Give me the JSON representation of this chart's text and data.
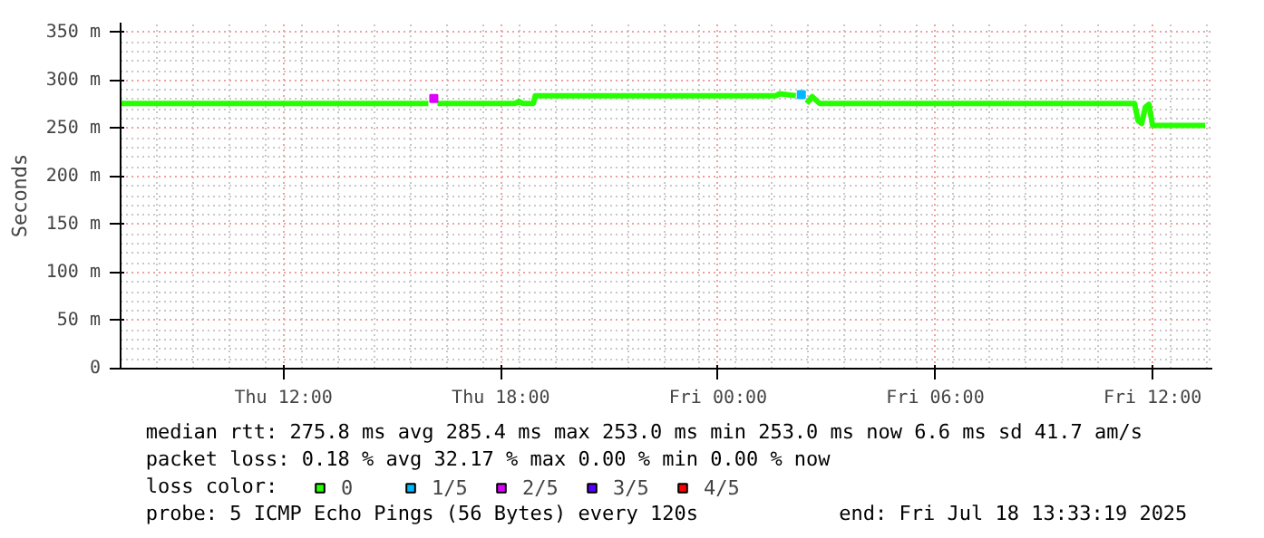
{
  "chart_data": {
    "type": "line",
    "ylabel": "Seconds",
    "legend_title": "loss color:",
    "legend": "bottom",
    "grid": true,
    "line_style": "solid",
    "x": [
      "2025-07-17T07:30",
      "2025-07-17T16:00",
      "2025-07-17T16:09",
      "2025-07-17T16:15",
      "2025-07-17T18:24",
      "2025-07-17T18:30",
      "2025-07-17T18:36",
      "2025-07-17T18:54",
      "2025-07-17T18:57",
      "2025-07-18T01:36",
      "2025-07-18T01:42",
      "2025-07-18T02:09",
      "2025-07-18T02:18",
      "2025-07-18T02:27",
      "2025-07-18T02:36",
      "2025-07-18T02:48",
      "2025-07-18T11:30",
      "2025-07-18T11:36",
      "2025-07-18T11:42",
      "2025-07-18T11:48",
      "2025-07-18T11:54",
      "2025-07-18T12:00",
      "2025-07-18T12:06",
      "2025-07-18T13:27"
    ],
    "xlim": [
      "2025-07-17T07:30",
      "2025-07-18T13:39"
    ],
    "xticks": [
      {
        "value": "2025-07-17T12:00",
        "label": "Thu 12:00"
      },
      {
        "value": "2025-07-17T18:00",
        "label": "Thu 18:00"
      },
      {
        "value": "2025-07-18T00:00",
        "label": "Fri 00:00"
      },
      {
        "value": "2025-07-18T06:00",
        "label": "Fri 06:00"
      },
      {
        "value": "2025-07-18T12:00",
        "label": "Fri 12:00"
      }
    ],
    "ylim": [
      0,
      360
    ],
    "yticks": [
      0,
      {
        "value": 50,
        "label": "50 m"
      },
      {
        "value": 100,
        "label": "100 m"
      },
      {
        "value": 150,
        "label": "150 m"
      },
      {
        "value": 200,
        "label": "200 m"
      },
      {
        "value": 250,
        "label": "250 m"
      },
      {
        "value": 300,
        "label": "300 m"
      },
      {
        "value": 350,
        "label": "350 m"
      }
    ],
    "series": [
      {
        "name": "0",
        "color": "#26ff00",
        "values": [
          276,
          276,
          null,
          276,
          276,
          278,
          276,
          276,
          284,
          284,
          286,
          284,
          null,
          276,
          283,
          276,
          276,
          258,
          255,
          272,
          275,
          253,
          253,
          253
        ]
      },
      {
        "name": "1/5",
        "color": "#00b8ff",
        "type": "scatter",
        "values": [
          null,
          null,
          null,
          null,
          null,
          null,
          null,
          null,
          null,
          null,
          null,
          null,
          285,
          null,
          null,
          null,
          null,
          null,
          null,
          null,
          null,
          null,
          null,
          null
        ]
      },
      {
        "name": "2/5",
        "color": "#dd00ff",
        "type": "scatter",
        "values": [
          null,
          null,
          281,
          null,
          null,
          null,
          null,
          null,
          null,
          null,
          null,
          null,
          null,
          null,
          null,
          null,
          null,
          null,
          null,
          null,
          null,
          null,
          null,
          null
        ]
      },
      {
        "name": "3/5",
        "color": "#5500ff",
        "type": "scatter",
        "values": [
          null,
          null,
          null,
          null,
          null,
          null,
          null,
          null,
          null,
          null,
          null,
          null,
          null,
          null,
          null,
          null,
          null,
          null,
          null,
          null,
          null,
          null,
          null,
          null
        ]
      },
      {
        "name": "4/5",
        "color": "#ff0000",
        "type": "scatter",
        "values": [
          null,
          null,
          null,
          null,
          null,
          null,
          null,
          null,
          null,
          null,
          null,
          null,
          null,
          null,
          null,
          null,
          null,
          null,
          null,
          null,
          null,
          null,
          null,
          null
        ]
      }
    ],
    "annotations": [
      "median rtt:  275.8 ms avg  285.4 ms max  253.0 ms min  253.0 ms now  6.6 ms sd  41.7   am/s",
      "packet loss: 0.18 % avg  32.17 % max  0.00 % min  0.00 % now",
      "probe:       5 ICMP Echo Pings (56 Bytes) every 120s",
      "end: Fri Jul 18 13:33:19 2025"
    ]
  }
}
